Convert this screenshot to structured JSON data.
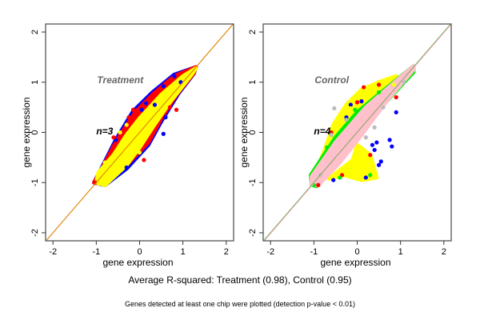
{
  "caption": "Average R-squared: Treatment (0.98), Control (0.95)",
  "footnote": "Genes detected at least one chip were plotted (detection p-value < 0.01)",
  "chart_data": [
    {
      "type": "scatter",
      "title": "Treatment",
      "annotation": "n=3",
      "xlabel": "gene expression",
      "ylabel": "gene expression",
      "xlim": [
        -2.17,
        2.17
      ],
      "ylim": [
        -2.16,
        2.16
      ],
      "xticks": [
        "-2",
        "-1",
        "0",
        "1",
        "2"
      ],
      "yticks": [
        "-2",
        "-1",
        "0",
        "1",
        "2"
      ],
      "grid": false,
      "reference_lines": [
        {
          "slope": 1,
          "intercept": 0,
          "color": "#e08000"
        }
      ],
      "regions": [
        {
          "color": "#0000ff",
          "points": [
            [
              -1.05,
              -1.0
            ],
            [
              -0.9,
              -0.75
            ],
            [
              -0.55,
              -0.15
            ],
            [
              -0.15,
              0.42
            ],
            [
              0.3,
              0.8
            ],
            [
              0.8,
              1.15
            ],
            [
              1.3,
              1.3
            ],
            [
              1.25,
              1.17
            ],
            [
              0.9,
              0.78
            ],
            [
              0.5,
              0.22
            ],
            [
              0.2,
              -0.25
            ],
            [
              -0.3,
              -0.72
            ],
            [
              -0.8,
              -1.05
            ]
          ]
        },
        {
          "color": "#ff0000",
          "points": [
            [
              -1.05,
              -1.0
            ],
            [
              -0.9,
              -0.77
            ],
            [
              -0.5,
              -0.12
            ],
            [
              -0.1,
              0.4
            ],
            [
              0.3,
              0.75
            ],
            [
              0.8,
              1.12
            ],
            [
              1.3,
              1.3
            ],
            [
              1.25,
              1.18
            ],
            [
              0.85,
              0.75
            ],
            [
              0.5,
              0.28
            ],
            [
              0.2,
              -0.2
            ],
            [
              -0.3,
              -0.65
            ],
            [
              -0.8,
              -1.03
            ]
          ]
        },
        {
          "color": "#ffff00",
          "points": [
            [
              -1.0,
              -1.0
            ],
            [
              -0.95,
              -0.8
            ],
            [
              -0.6,
              -0.45
            ],
            [
              -0.3,
              -0.05
            ],
            [
              0.0,
              0.28
            ],
            [
              0.5,
              0.75
            ],
            [
              1.0,
              1.12
            ],
            [
              1.3,
              1.28
            ],
            [
              1.2,
              1.15
            ],
            [
              0.7,
              0.6
            ],
            [
              0.3,
              0.1
            ],
            [
              0.0,
              -0.3
            ],
            [
              -0.3,
              -0.65
            ],
            [
              -0.8,
              -1.05
            ]
          ]
        }
      ],
      "series": [
        {
          "color": "#0000ff",
          "points": [
            [
              0.15,
              0.58
            ],
            [
              0.55,
              0.92
            ],
            [
              0.8,
              1.12
            ],
            [
              0.55,
              -0.03
            ],
            [
              -0.3,
              -0.7
            ],
            [
              0.05,
              0.45
            ],
            [
              0.35,
              0.55
            ],
            [
              0.6,
              0.3
            ],
            [
              -0.55,
              -0.15
            ],
            [
              0.95,
              1.0
            ]
          ]
        },
        {
          "color": "#ff0000",
          "points": [
            [
              -0.15,
              0.45
            ],
            [
              0.85,
              0.45
            ],
            [
              -1.02,
              -1.0
            ],
            [
              -0.25,
              0.3
            ],
            [
              0.7,
              0.5
            ],
            [
              0.1,
              -0.55
            ],
            [
              -0.6,
              -0.1
            ],
            [
              0.45,
              0.85
            ]
          ]
        },
        {
          "color": "#ffff00",
          "points": [
            [
              -0.45,
              0.0
            ],
            [
              -0.3,
              0.15
            ],
            [
              -0.95,
              -1.02
            ],
            [
              -0.8,
              -0.6
            ],
            [
              0.0,
              -0.4
            ]
          ]
        }
      ]
    },
    {
      "type": "scatter",
      "title": "Control",
      "annotation": "n=4",
      "xlabel": "gene expression",
      "ylabel": "gene expression",
      "xlim": [
        -2.17,
        2.17
      ],
      "ylim": [
        -2.16,
        2.16
      ],
      "xticks": [
        "-2",
        "-1",
        "0",
        "1",
        "2"
      ],
      "yticks": [
        "-2",
        "-1",
        "0",
        "1",
        "2"
      ],
      "grid": false,
      "reference_lines": [
        {
          "slope": 1,
          "intercept": 0,
          "color": "#33aa33"
        },
        {
          "slope": 1,
          "intercept": 0,
          "color": "#ffb0c0"
        }
      ],
      "regions": [
        {
          "color": "#ffff00",
          "points": [
            [
              -1.0,
              -0.9
            ],
            [
              -0.75,
              -0.35
            ],
            [
              -0.55,
              0.15
            ],
            [
              -0.25,
              0.55
            ],
            [
              0.1,
              0.85
            ],
            [
              0.5,
              1.0
            ],
            [
              0.9,
              1.12
            ],
            [
              0.5,
              0.7
            ],
            [
              0.0,
              0.2
            ],
            [
              -0.5,
              -0.4
            ]
          ]
        },
        {
          "color": "#ffff00",
          "points": [
            [
              0.0,
              -0.25
            ],
            [
              0.3,
              -0.45
            ],
            [
              0.45,
              -0.9
            ],
            [
              0.1,
              -0.95
            ],
            [
              -0.3,
              -0.85
            ],
            [
              -0.65,
              -0.92
            ],
            [
              -0.1,
              -0.55
            ]
          ]
        },
        {
          "color": "#00ee00",
          "points": [
            [
              -1.05,
              -1.05
            ],
            [
              -1.07,
              -0.85
            ],
            [
              -0.5,
              -0.1
            ],
            [
              0.0,
              0.4
            ],
            [
              0.7,
              0.9
            ],
            [
              1.3,
              1.32
            ],
            [
              1.3,
              1.2
            ],
            [
              0.6,
              0.55
            ],
            [
              0.0,
              -0.15
            ],
            [
              -0.6,
              -0.75
            ],
            [
              -0.95,
              -1.07
            ]
          ]
        },
        {
          "color": "#ffc0cb",
          "points": [
            [
              -1.05,
              -1.05
            ],
            [
              -1.05,
              -0.88
            ],
            [
              -0.5,
              -0.2
            ],
            [
              0.2,
              0.5
            ],
            [
              0.8,
              0.95
            ],
            [
              1.3,
              1.32
            ],
            [
              1.3,
              1.25
            ],
            [
              0.7,
              0.65
            ],
            [
              0.1,
              -0.05
            ],
            [
              -0.4,
              -0.6
            ],
            [
              -0.9,
              -1.05
            ]
          ]
        }
      ],
      "series": [
        {
          "color": "#0000ff",
          "points": [
            [
              -0.15,
              0.55
            ],
            [
              0.1,
              0.62
            ],
            [
              0.45,
              -0.2
            ],
            [
              0.4,
              -0.35
            ],
            [
              0.75,
              -0.15
            ],
            [
              0.8,
              -0.28
            ],
            [
              0.5,
              -0.65
            ],
            [
              0.2,
              -0.9
            ],
            [
              -0.55,
              -0.95
            ],
            [
              0.35,
              -0.25
            ],
            [
              -0.25,
              0.3
            ],
            [
              0.9,
              0.4
            ],
            [
              0.55,
              -0.58
            ]
          ]
        },
        {
          "color": "#ff0000",
          "points": [
            [
              0.15,
              0.9
            ],
            [
              -0.6,
              0.0
            ],
            [
              0.3,
              -0.45
            ],
            [
              -0.35,
              -0.85
            ],
            [
              0.0,
              0.6
            ],
            [
              0.5,
              0.95
            ],
            [
              0.9,
              0.7
            ],
            [
              -0.9,
              -1.05
            ]
          ]
        },
        {
          "color": "#00ee00",
          "points": [
            [
              -0.7,
              -0.3
            ],
            [
              -0.05,
              0.45
            ],
            [
              0.5,
              0.8
            ],
            [
              -0.4,
              -0.9
            ],
            [
              -1.0,
              -1.05
            ],
            [
              0.3,
              -0.85
            ]
          ]
        },
        {
          "color": "#bbbbbb",
          "points": [
            [
              -0.53,
              0.48
            ],
            [
              -0.25,
              0.25
            ],
            [
              -0.6,
              -0.05
            ],
            [
              0.4,
              0.1
            ],
            [
              0.6,
              0.5
            ],
            [
              1.08,
              1.0
            ],
            [
              0.2,
              -0.1
            ],
            [
              -0.85,
              -0.85
            ]
          ]
        },
        {
          "color": "#ffff00",
          "points": [
            [
              0.15,
              0.82
            ],
            [
              -0.15,
              0.48
            ],
            [
              0.85,
              0.95
            ]
          ]
        }
      ]
    }
  ]
}
